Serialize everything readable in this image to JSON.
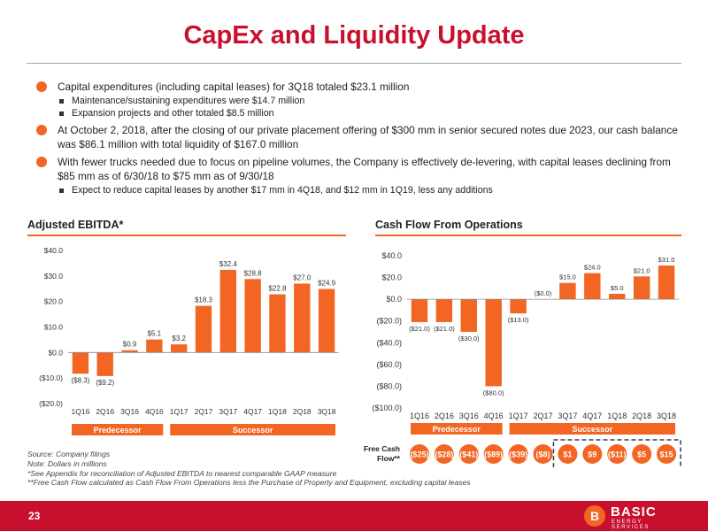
{
  "title": "CapEx and Liquidity Update",
  "bullets": [
    {
      "text": "Capital expenditures (including capital leases) for 3Q18 totaled $23.1 million",
      "subs": [
        "Maintenance/sustaining expenditures were $14.7 million",
        "Expansion projects and other totaled $8.5 million"
      ]
    },
    {
      "text": "At October 2, 2018, after the closing of our private placement offering of $300 mm in senior secured notes due 2023, our cash balance was $86.1 million with total liquidity of $167.0 million",
      "subs": []
    },
    {
      "text": "With fewer trucks needed due to focus on pipeline volumes, the Company is effectively de-levering, with capital leases declining from $85 mm as of 6/30/18 to $75 mm as of 9/30/18",
      "subs": [
        "Expect to reduce capital leases by another $17 mm in 4Q18, and $12 mm in 1Q19, less any additions"
      ]
    }
  ],
  "colors": {
    "accent": "#f26522",
    "brand": "#c8102e",
    "predecessor_bar": "#f26522"
  },
  "chart_data": [
    {
      "type": "bar",
      "title": "Adjusted EBITDA*",
      "categories": [
        "1Q16",
        "2Q16",
        "3Q16",
        "4Q16",
        "1Q17",
        "2Q17",
        "3Q17",
        "4Q17",
        "1Q18",
        "2Q18",
        "3Q18"
      ],
      "values": [
        -8.3,
        -9.2,
        0.9,
        5.1,
        3.2,
        18.3,
        32.4,
        28.8,
        22.8,
        27.0,
        24.9
      ],
      "value_labels": [
        "($8.3)",
        "($9.2)",
        "$0.9",
        "$5.1",
        "$3.2",
        "$18.3",
        "$32.4",
        "$28.8",
        "$22.8",
        "$27.0",
        "$24.9"
      ],
      "yticks": [
        -20,
        -10,
        0,
        10,
        20,
        30,
        40
      ],
      "ytick_labels": [
        "($20.0)",
        "($10.0)",
        "$0.0",
        "$10.0",
        "$20.0",
        "$30.0",
        "$40.0"
      ],
      "ylim": [
        -20,
        40
      ],
      "grid": false,
      "periods": [
        {
          "label": "Predecessor",
          "start": 0,
          "end": 3
        },
        {
          "label": "Successor",
          "start": 4,
          "end": 10
        }
      ]
    },
    {
      "type": "bar",
      "title": "Cash Flow From Operations",
      "categories": [
        "1Q16",
        "2Q16",
        "3Q16",
        "4Q16",
        "1Q17",
        "2Q17",
        "3Q17",
        "4Q17",
        "1Q18",
        "2Q18",
        "3Q18"
      ],
      "values": [
        -21.0,
        -21.0,
        -30.0,
        -80.0,
        -13.0,
        0.0,
        15.0,
        24.0,
        5.0,
        21.0,
        31.0
      ],
      "value_labels": [
        "($21.0)",
        "($21.0)",
        "($30.0)",
        "($80.0)",
        "($13.0)",
        "($0.0)",
        "$15.0",
        "$24.0",
        "$5.0",
        "$21.0",
        "$31.0"
      ],
      "yticks": [
        -100,
        -80,
        -60,
        -40,
        -20,
        0,
        20,
        40
      ],
      "ytick_labels": [
        "($100.0)",
        "($80.0)",
        "($60.0)",
        "($40.0)",
        "($20.0)",
        "$0.0",
        "$20.0",
        "$40.0"
      ],
      "ylim": [
        -100,
        40
      ],
      "grid": false,
      "periods": [
        {
          "label": "Predecessor",
          "start": 0,
          "end": 3
        },
        {
          "label": "Successor",
          "start": 4,
          "end": 10
        }
      ],
      "free_cash_flow": {
        "label": "Free Cash Flow**",
        "values": [
          "($25)",
          "($28)",
          "($41)",
          "($89)",
          "($39)",
          "($8)",
          "$1",
          "$9",
          "($11)",
          "$5",
          "$15"
        ],
        "highlighted_range": [
          6,
          10
        ]
      }
    }
  ],
  "footnotes": [
    "Source: Company filings",
    "Note: Dollars in millions",
    "*See Appendix for reconciliation of Adjusted EBITDA to nearest comparable GAAP measure",
    "**Free Cash Flow calculated as Cash Flow From Operations less the Purchase of Property and Equipment, excluding capital leases"
  ],
  "footer": {
    "page_number": "23",
    "logo_mark": "B",
    "logo_name": "BASIC",
    "logo_tagline": "ENERGY SERVICES"
  }
}
